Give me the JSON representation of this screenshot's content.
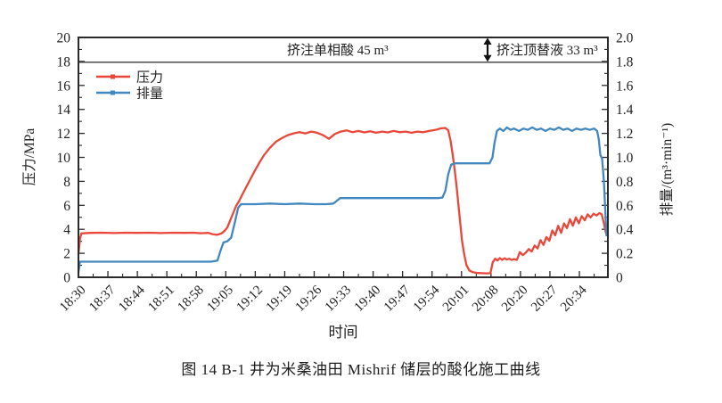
{
  "figure": {
    "caption": "图 14  B-1 井为米桑油田 Mishrif 储层的酸化施工曲线"
  },
  "chart_data": {
    "type": "line",
    "title": "",
    "xlabel": "时间",
    "ylabel_left": "压力/MPa",
    "ylabel_right": "排量/(m³·min⁻¹)",
    "x_encoding": "tick_index",
    "x_tick_labels": [
      "18:30",
      "18:37",
      "18:44",
      "18:51",
      "18:58",
      "19:05",
      "19:12",
      "19:19",
      "19:26",
      "19:33",
      "19:40",
      "19:47",
      "19:54",
      "20:01",
      "20:08",
      "20:20",
      "20:27",
      "20:34"
    ],
    "ylim_left": [
      0,
      20
    ],
    "yticks_left": [
      0,
      2,
      4,
      6,
      8,
      10,
      12,
      14,
      16,
      18,
      20
    ],
    "ylim_right": [
      0,
      2.0
    ],
    "yticks_right": [
      "0",
      "0.2",
      "0.4",
      "0.6",
      "0.8",
      "1.0",
      "1.2",
      "1.4",
      "1.6",
      "1.8",
      "2.0"
    ],
    "grid": false,
    "reference_line_left": 18,
    "annotations": [
      {
        "text": "挤注单相酸 45 m³",
        "type": "stage-label"
      },
      {
        "text": "挤注顶替液 33 m³",
        "type": "stage-label-with-arrow"
      }
    ],
    "legend": [
      {
        "name": "压力",
        "color": "#e8473a"
      },
      {
        "name": "排量",
        "color": "#4187c0"
      }
    ],
    "series": [
      {
        "name": "压力",
        "axis": "left",
        "color": "#e8473a",
        "points": [
          [
            0,
            1.9
          ],
          [
            0.05,
            3.2
          ],
          [
            0.1,
            3.66
          ],
          [
            0.4,
            3.7
          ],
          [
            0.8,
            3.72
          ],
          [
            1.2,
            3.69
          ],
          [
            1.6,
            3.72
          ],
          [
            2.0,
            3.7
          ],
          [
            2.4,
            3.72
          ],
          [
            2.8,
            3.69
          ],
          [
            3.2,
            3.72
          ],
          [
            3.6,
            3.7
          ],
          [
            3.9,
            3.72
          ],
          [
            4.15,
            3.67
          ],
          [
            4.4,
            3.7
          ],
          [
            4.55,
            3.6
          ],
          [
            4.7,
            3.54
          ],
          [
            4.85,
            3.65
          ],
          [
            4.95,
            3.85
          ],
          [
            5.05,
            4.15
          ],
          [
            5.15,
            4.75
          ],
          [
            5.25,
            5.35
          ],
          [
            5.35,
            5.95
          ],
          [
            5.45,
            6.35
          ],
          [
            5.55,
            6.85
          ],
          [
            5.7,
            7.55
          ],
          [
            5.85,
            8.25
          ],
          [
            6.0,
            8.95
          ],
          [
            6.15,
            9.6
          ],
          [
            6.3,
            10.2
          ],
          [
            6.5,
            10.8
          ],
          [
            6.7,
            11.3
          ],
          [
            6.9,
            11.6
          ],
          [
            7.1,
            11.85
          ],
          [
            7.3,
            12.0
          ],
          [
            7.5,
            12.1
          ],
          [
            7.7,
            12.0
          ],
          [
            7.9,
            12.15
          ],
          [
            8.1,
            12.05
          ],
          [
            8.3,
            11.85
          ],
          [
            8.5,
            11.55
          ],
          [
            8.7,
            11.95
          ],
          [
            8.9,
            12.15
          ],
          [
            9.1,
            12.25
          ],
          [
            9.3,
            12.1
          ],
          [
            9.5,
            12.2
          ],
          [
            9.7,
            12.08
          ],
          [
            9.9,
            12.18
          ],
          [
            10.1,
            12.05
          ],
          [
            10.3,
            12.15
          ],
          [
            10.5,
            12.08
          ],
          [
            10.7,
            12.2
          ],
          [
            10.9,
            12.1
          ],
          [
            11.1,
            12.15
          ],
          [
            11.3,
            12.05
          ],
          [
            11.5,
            12.15
          ],
          [
            11.7,
            12.1
          ],
          [
            11.9,
            12.2
          ],
          [
            12.1,
            12.28
          ],
          [
            12.3,
            12.42
          ],
          [
            12.45,
            12.45
          ],
          [
            12.55,
            12.25
          ],
          [
            12.63,
            11.4
          ],
          [
            12.7,
            10.2
          ],
          [
            12.77,
            8.9
          ],
          [
            12.84,
            7.4
          ],
          [
            12.9,
            5.9
          ],
          [
            12.96,
            4.4
          ],
          [
            13.02,
            3.0
          ],
          [
            13.09,
            1.9
          ],
          [
            13.17,
            1.0
          ],
          [
            13.27,
            0.55
          ],
          [
            13.4,
            0.42
          ],
          [
            13.55,
            0.36
          ],
          [
            13.7,
            0.34
          ],
          [
            13.85,
            0.33
          ],
          [
            13.98,
            0.34
          ],
          [
            14.06,
            1.25
          ],
          [
            14.14,
            1.55
          ],
          [
            14.22,
            1.4
          ],
          [
            14.3,
            1.6
          ],
          [
            14.38,
            1.45
          ],
          [
            14.46,
            1.58
          ],
          [
            14.54,
            1.48
          ],
          [
            14.62,
            1.55
          ],
          [
            14.7,
            1.45
          ],
          [
            14.78,
            1.52
          ],
          [
            14.88,
            1.45
          ],
          [
            14.98,
            2.1
          ],
          [
            15.08,
            1.85
          ],
          [
            15.18,
            2.05
          ],
          [
            15.28,
            2.35
          ],
          [
            15.38,
            2.15
          ],
          [
            15.48,
            2.65
          ],
          [
            15.58,
            2.4
          ],
          [
            15.68,
            3.1
          ],
          [
            15.78,
            2.7
          ],
          [
            15.88,
            3.35
          ],
          [
            15.98,
            3.05
          ],
          [
            16.08,
            3.9
          ],
          [
            16.18,
            3.5
          ],
          [
            16.28,
            4.3
          ],
          [
            16.38,
            3.7
          ],
          [
            16.48,
            4.5
          ],
          [
            16.58,
            4.1
          ],
          [
            16.68,
            4.85
          ],
          [
            16.78,
            4.3
          ],
          [
            16.88,
            5.0
          ],
          [
            16.98,
            4.5
          ],
          [
            17.08,
            5.1
          ],
          [
            17.18,
            4.75
          ],
          [
            17.28,
            5.25
          ],
          [
            17.38,
            5.0
          ],
          [
            17.48,
            5.3
          ],
          [
            17.58,
            5.15
          ],
          [
            17.68,
            5.35
          ],
          [
            17.76,
            5.25
          ],
          [
            17.83,
            4.5
          ],
          [
            17.89,
            3.8
          ],
          [
            17.93,
            3.5
          ]
        ]
      },
      {
        "name": "排量",
        "axis": "right",
        "color": "#4187c0",
        "points": [
          [
            0,
            0.04
          ],
          [
            0.05,
            0.13
          ],
          [
            0.5,
            0.13
          ],
          [
            1,
            0.13
          ],
          [
            1.5,
            0.13
          ],
          [
            2,
            0.13
          ],
          [
            2.5,
            0.13
          ],
          [
            3,
            0.13
          ],
          [
            3.5,
            0.13
          ],
          [
            4,
            0.13
          ],
          [
            4.5,
            0.13
          ],
          [
            4.72,
            0.14
          ],
          [
            4.82,
            0.22
          ],
          [
            4.92,
            0.29
          ],
          [
            5.05,
            0.3
          ],
          [
            5.18,
            0.33
          ],
          [
            5.3,
            0.45
          ],
          [
            5.42,
            0.58
          ],
          [
            5.52,
            0.61
          ],
          [
            6,
            0.61
          ],
          [
            6.5,
            0.615
          ],
          [
            7,
            0.61
          ],
          [
            7.5,
            0.615
          ],
          [
            8,
            0.61
          ],
          [
            8.4,
            0.61
          ],
          [
            8.65,
            0.615
          ],
          [
            8.78,
            0.64
          ],
          [
            8.88,
            0.66
          ],
          [
            9.3,
            0.66
          ],
          [
            9.8,
            0.66
          ],
          [
            10.3,
            0.66
          ],
          [
            10.8,
            0.66
          ],
          [
            11.3,
            0.66
          ],
          [
            11.8,
            0.66
          ],
          [
            12.2,
            0.66
          ],
          [
            12.35,
            0.665
          ],
          [
            12.45,
            0.72
          ],
          [
            12.55,
            0.86
          ],
          [
            12.65,
            0.94
          ],
          [
            12.8,
            0.95
          ],
          [
            13.2,
            0.95
          ],
          [
            13.6,
            0.95
          ],
          [
            13.95,
            0.95
          ],
          [
            14.05,
            1.0
          ],
          [
            14.12,
            1.12
          ],
          [
            14.2,
            1.22
          ],
          [
            14.3,
            1.24
          ],
          [
            14.42,
            1.22
          ],
          [
            14.54,
            1.25
          ],
          [
            14.66,
            1.23
          ],
          [
            14.78,
            1.24
          ],
          [
            14.95,
            1.22
          ],
          [
            15.1,
            1.24
          ],
          [
            15.25,
            1.23
          ],
          [
            15.4,
            1.25
          ],
          [
            15.55,
            1.23
          ],
          [
            15.7,
            1.24
          ],
          [
            15.85,
            1.22
          ],
          [
            16.0,
            1.24
          ],
          [
            16.15,
            1.23
          ],
          [
            16.3,
            1.25
          ],
          [
            16.45,
            1.23
          ],
          [
            16.6,
            1.24
          ],
          [
            16.75,
            1.22
          ],
          [
            16.9,
            1.24
          ],
          [
            17.05,
            1.23
          ],
          [
            17.2,
            1.24
          ],
          [
            17.35,
            1.23
          ],
          [
            17.5,
            1.24
          ],
          [
            17.6,
            1.22
          ],
          [
            17.66,
            1.15
          ],
          [
            17.71,
            1.02
          ],
          [
            17.77,
            0.99
          ],
          [
            17.83,
            0.8
          ],
          [
            17.88,
            0.55
          ],
          [
            17.92,
            0.35
          ]
        ]
      }
    ]
  }
}
